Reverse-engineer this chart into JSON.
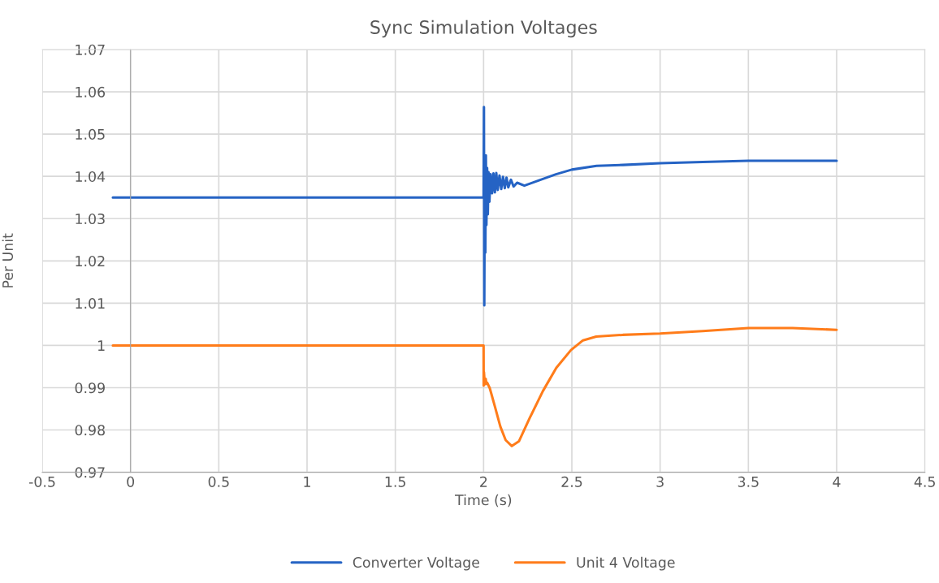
{
  "chart_data": {
    "type": "line",
    "title": "Sync Simulation Voltages",
    "xlabel": "Time (s)",
    "ylabel": "Per Unit",
    "xlim": [
      -0.5,
      4.5
    ],
    "xticks": [
      -0.5,
      0,
      0.5,
      1,
      1.5,
      2,
      2.5,
      3,
      3.5,
      4,
      4.5
    ],
    "ylim": [
      0.97,
      1.07
    ],
    "yticks": [
      0.97,
      0.98,
      0.99,
      1,
      1.01,
      1.02,
      1.03,
      1.04,
      1.05,
      1.06,
      1.07
    ],
    "grid": true,
    "legend": "bottom",
    "marker": "none",
    "line_style": "solid",
    "series": [
      {
        "name": "Converter Voltage",
        "color": "#2563c4",
        "x": [
          -0.1,
          2.0,
          2.002,
          2.004,
          2.007,
          2.01,
          2.013,
          2.016,
          2.02,
          2.024,
          2.028,
          2.033,
          2.04,
          2.048,
          2.056,
          2.064,
          2.072,
          2.08,
          2.09,
          2.1,
          2.11,
          2.12,
          2.13,
          2.14,
          2.155,
          2.17,
          2.19,
          2.231,
          2.336,
          2.41,
          2.5,
          2.64,
          2.79,
          3.0,
          3.24,
          3.5,
          3.75,
          4.0
        ],
        "values": [
          1.035,
          1.035,
          1.0564,
          1.0095,
          1.045,
          1.022,
          1.045,
          1.0285,
          1.042,
          1.031,
          1.041,
          1.034,
          1.0405,
          1.036,
          1.0407,
          1.0362,
          1.0408,
          1.0368,
          1.0402,
          1.037,
          1.0399,
          1.0372,
          1.0397,
          1.0374,
          1.0392,
          1.0376,
          1.0385,
          1.0378,
          1.0394,
          1.0405,
          1.0416,
          1.0425,
          1.0427,
          1.0431,
          1.0434,
          1.0437,
          1.0437,
          1.0437
        ]
      },
      {
        "name": "Unit 4 Voltage",
        "color": "#ff7c1a",
        "x": [
          -0.1,
          2.0,
          2.0005,
          2.002,
          2.007,
          2.012,
          2.016,
          2.02,
          2.035,
          2.065,
          2.095,
          2.125,
          2.16,
          2.2,
          2.261,
          2.336,
          2.412,
          2.495,
          2.563,
          2.638,
          2.789,
          3.0,
          3.241,
          3.5,
          3.75,
          4.0
        ],
        "values": [
          1.0,
          1.0,
          0.9905,
          0.9937,
          0.9908,
          0.9921,
          0.9909,
          0.9912,
          0.9899,
          0.9854,
          0.9808,
          0.9776,
          0.9762,
          0.9773,
          0.9828,
          0.9892,
          0.9947,
          0.9989,
          1.0012,
          1.0021,
          1.0025,
          1.0028,
          1.0034,
          1.0041,
          1.0041,
          1.0037
        ]
      }
    ]
  }
}
